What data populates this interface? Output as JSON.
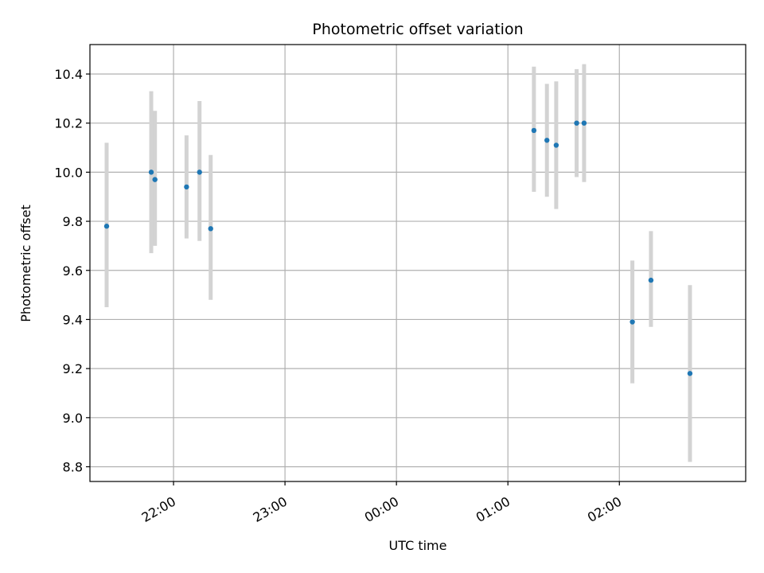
{
  "chart_data": {
    "type": "scatter",
    "title": "Photometric offset variation",
    "xlabel": "UTC time",
    "ylabel": "Photometric offset",
    "grid": true,
    "xlim": [
      "21:15",
      "03:08"
    ],
    "ylim": [
      8.74,
      10.52
    ],
    "x_ticks": [
      "22:00",
      "23:00",
      "00:00",
      "01:00",
      "02:00"
    ],
    "y_ticks": [
      8.8,
      9.0,
      9.2,
      9.4,
      9.6,
      9.8,
      10.0,
      10.2,
      10.4
    ],
    "marker_color": "#1f77b4",
    "errorbar_color": "#d3d3d3",
    "grid_color": "#b0b0b0",
    "points": [
      {
        "time": "21:24",
        "value": 9.78,
        "low": 9.45,
        "high": 10.12
      },
      {
        "time": "21:48",
        "value": 10.0,
        "low": 9.67,
        "high": 10.33
      },
      {
        "time": "21:50",
        "value": 9.97,
        "low": 9.7,
        "high": 10.25
      },
      {
        "time": "22:07",
        "value": 9.94,
        "low": 9.73,
        "high": 10.15
      },
      {
        "time": "22:14",
        "value": 10.0,
        "low": 9.72,
        "high": 10.29
      },
      {
        "time": "22:20",
        "value": 9.77,
        "low": 9.48,
        "high": 10.07
      },
      {
        "time": "01:14",
        "value": 10.17,
        "low": 9.92,
        "high": 10.43
      },
      {
        "time": "01:21",
        "value": 10.13,
        "low": 9.9,
        "high": 10.36
      },
      {
        "time": "01:26",
        "value": 10.11,
        "low": 9.85,
        "high": 10.37
      },
      {
        "time": "01:37",
        "value": 10.2,
        "low": 9.98,
        "high": 10.42
      },
      {
        "time": "01:41",
        "value": 10.2,
        "low": 9.96,
        "high": 10.44
      },
      {
        "time": "02:07",
        "value": 9.39,
        "low": 9.14,
        "high": 9.64
      },
      {
        "time": "02:17",
        "value": 9.56,
        "low": 9.37,
        "high": 9.76
      },
      {
        "time": "02:38",
        "value": 9.18,
        "low": 8.82,
        "high": 9.54
      }
    ]
  }
}
